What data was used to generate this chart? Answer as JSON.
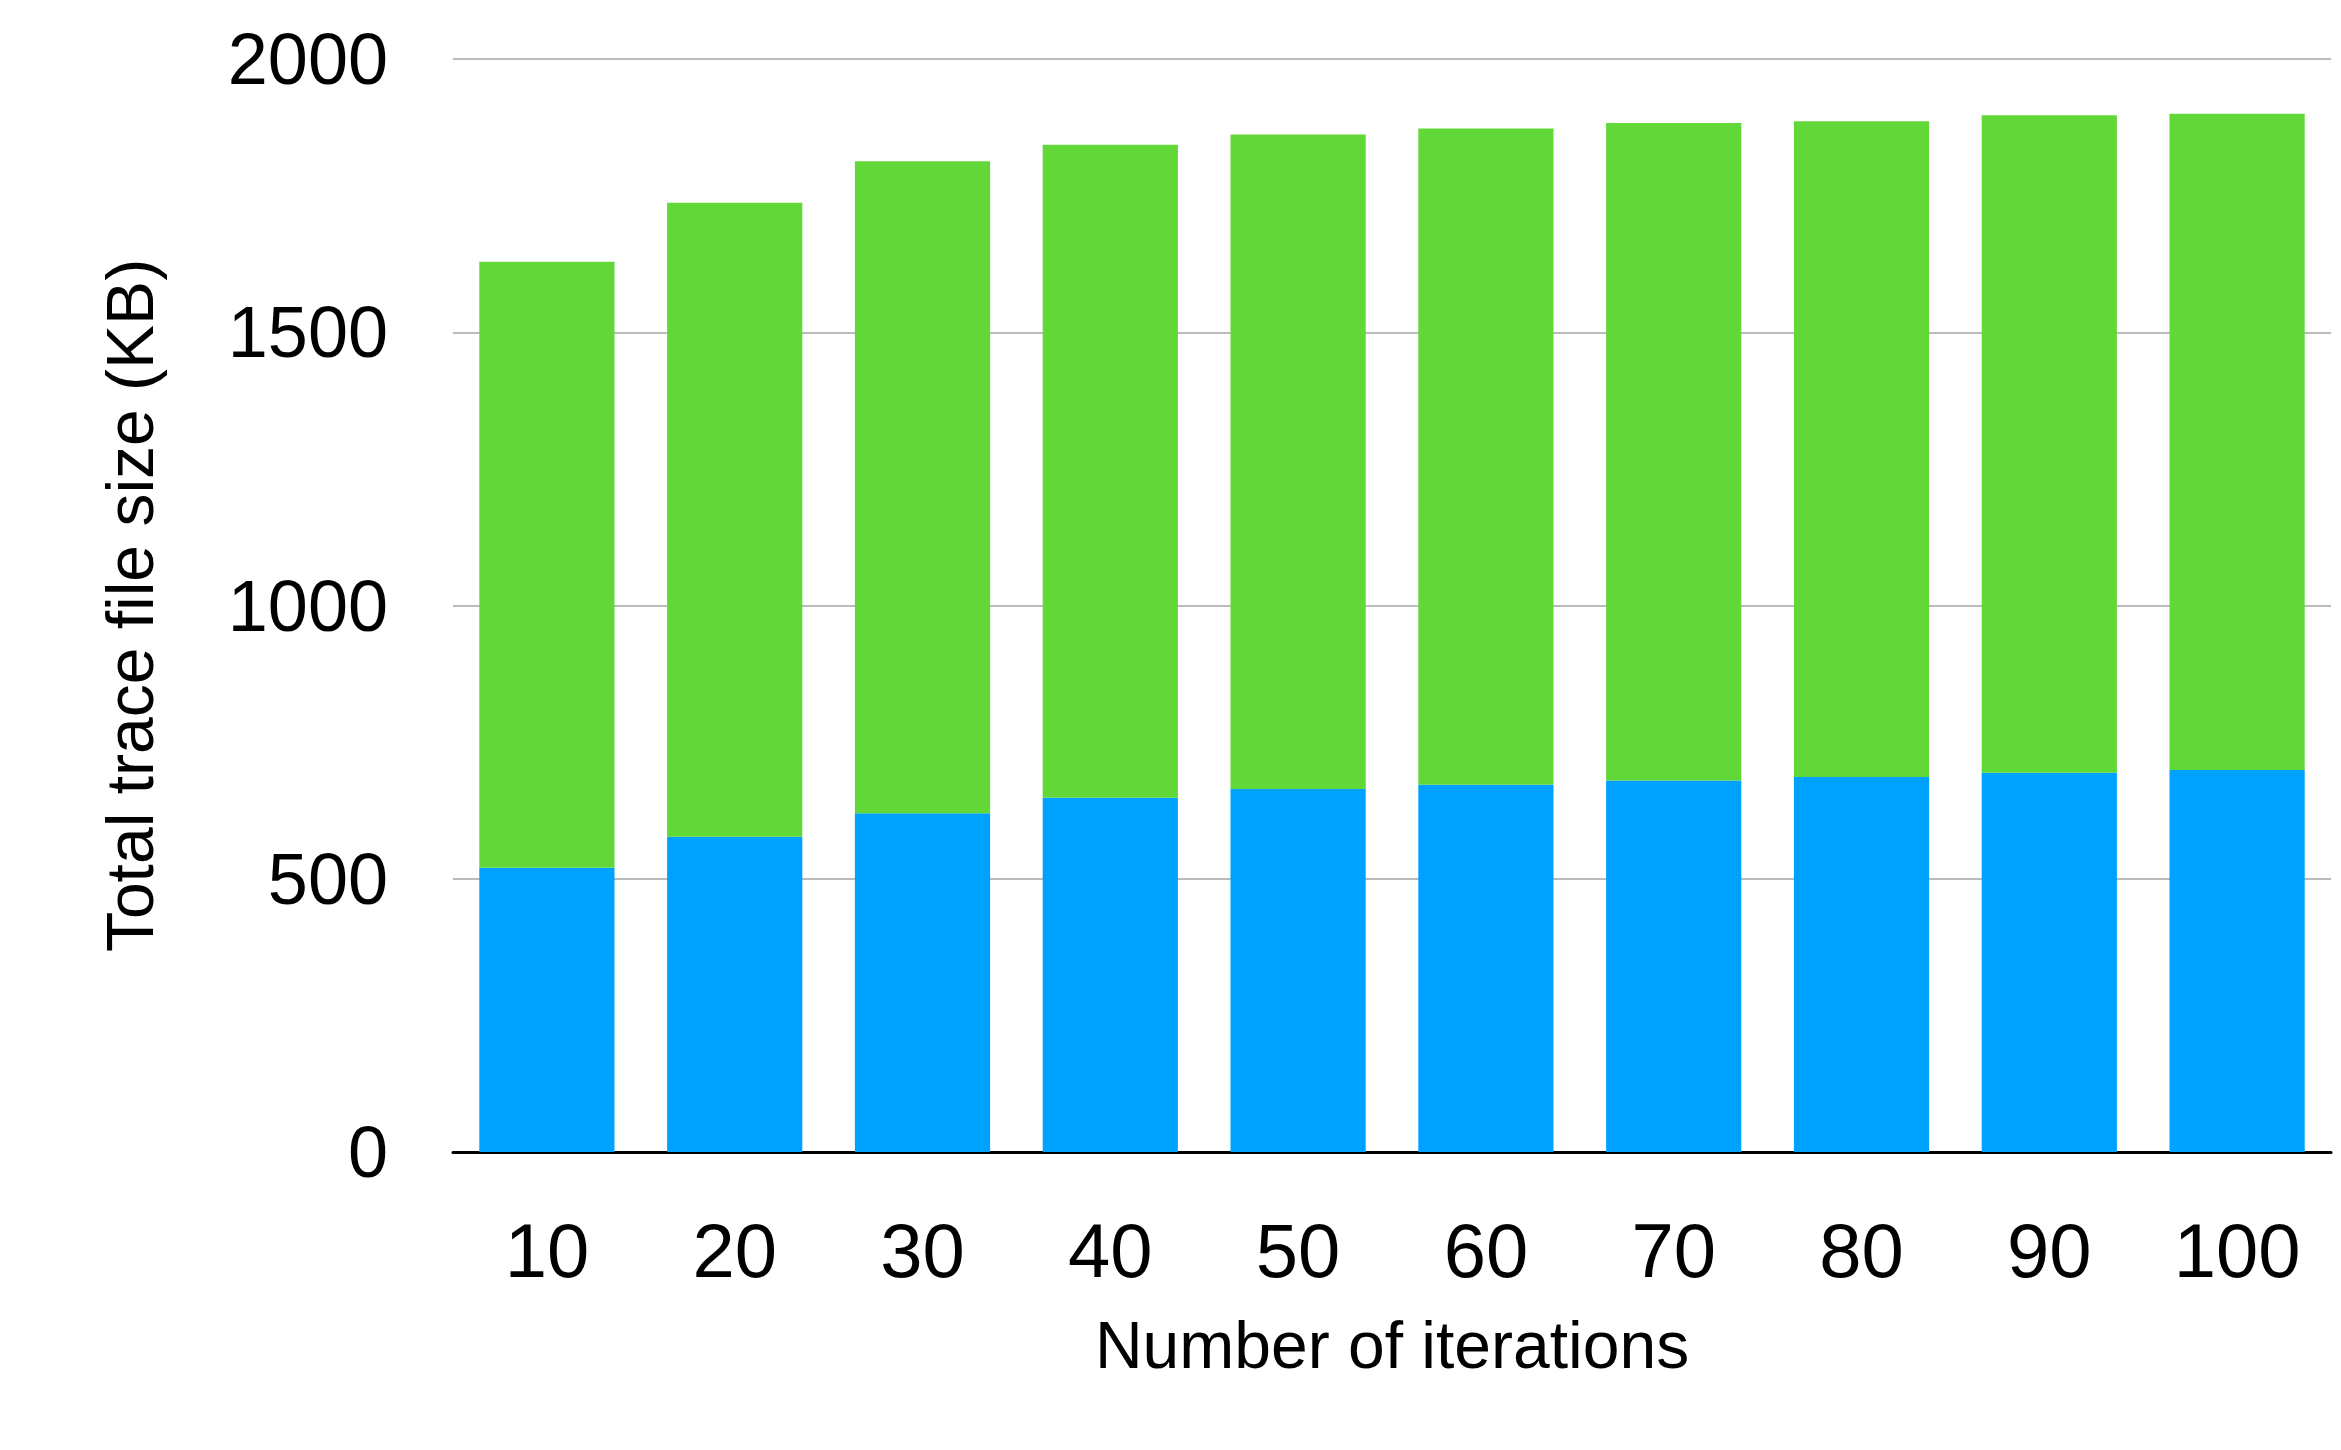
{
  "chart_data": {
    "type": "bar",
    "stacked": true,
    "xlabel": "Number of iterations",
    "ylabel": "Total trace file size (KB)",
    "categories": [
      "10",
      "20",
      "30",
      "40",
      "50",
      "60",
      "70",
      "80",
      "90",
      "100"
    ],
    "series": [
      {
        "color": "#00a2ff",
        "values": [
          520,
          577,
          620,
          648,
          664,
          672,
          680,
          686,
          694,
          699
        ]
      },
      {
        "color": "#62d838",
        "values": [
          1109,
          1160,
          1193,
          1195,
          1198,
          1201,
          1203,
          1200,
          1203,
          1201
        ]
      }
    ],
    "ylim": [
      0,
      2000
    ],
    "yticks": [
      0,
      500,
      1000,
      1500,
      2000
    ],
    "grid": "y"
  }
}
